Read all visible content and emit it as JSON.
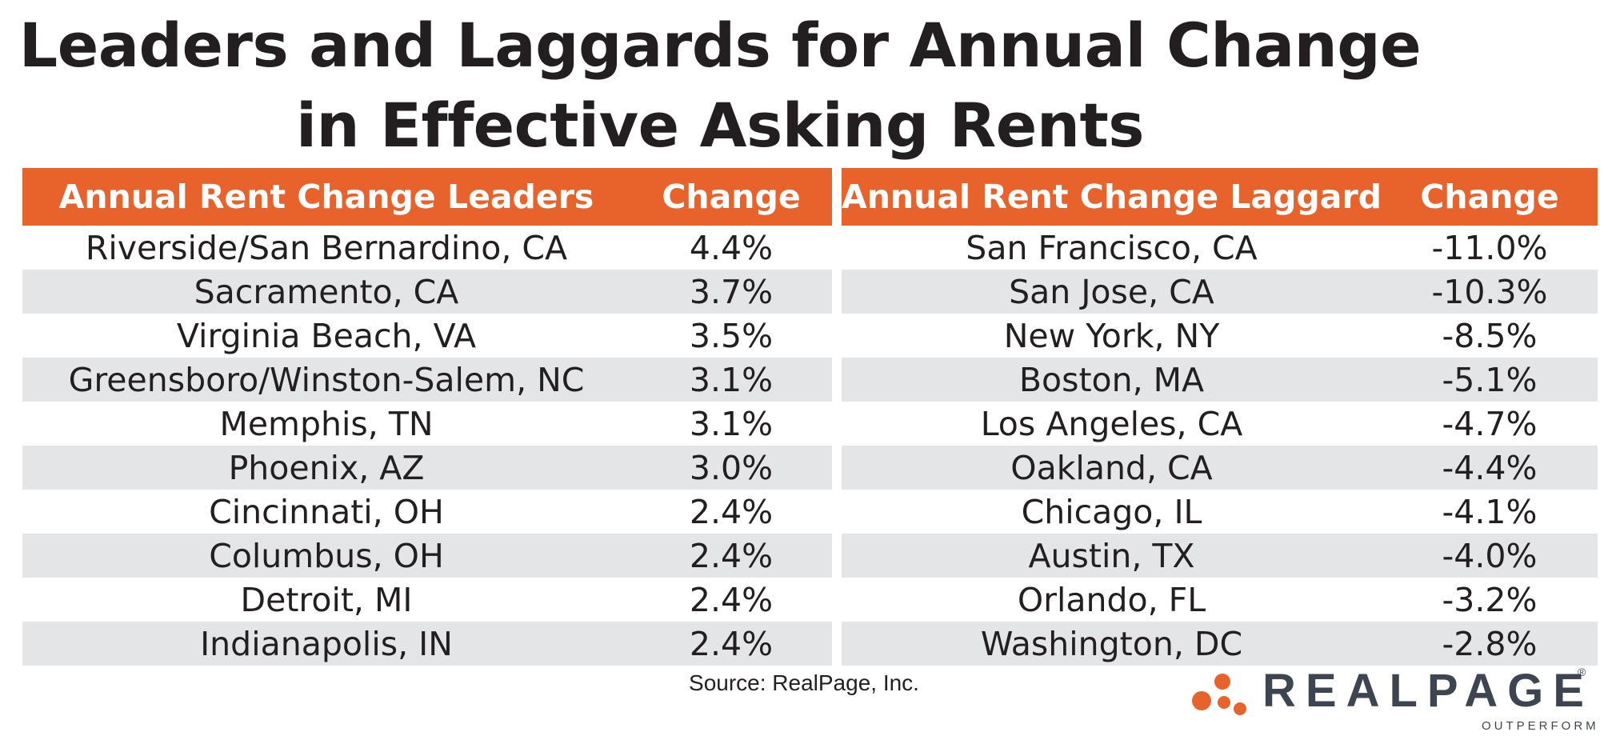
{
  "title_lines": [
    "Leaders and Laggards for Annual Change",
    "in Effective Asking Rents"
  ],
  "chart_data": [
    {
      "type": "table",
      "columns": [
        "Annual Rent Change Leaders",
        "Change"
      ],
      "rows": [
        [
          "Riverside/San Bernardino, CA",
          "4.4%"
        ],
        [
          "Sacramento, CA",
          "3.7%"
        ],
        [
          "Virginia Beach, VA",
          "3.5%"
        ],
        [
          "Greensboro/Winston-Salem, NC",
          "3.1%"
        ],
        [
          "Memphis, TN",
          "3.1%"
        ],
        [
          "Phoenix, AZ",
          "3.0%"
        ],
        [
          "Cincinnati, OH",
          "2.4%"
        ],
        [
          "Columbus, OH",
          "2.4%"
        ],
        [
          "Detroit, MI",
          "2.4%"
        ],
        [
          "Indianapolis, IN",
          "2.4%"
        ]
      ]
    },
    {
      "type": "table",
      "columns": [
        "Annual Rent Change Laggards",
        "Change"
      ],
      "rows": [
        [
          "San Francisco, CA",
          "-11.0%"
        ],
        [
          "San Jose, CA",
          "-10.3%"
        ],
        [
          "New York, NY",
          "-8.5%"
        ],
        [
          "Boston, MA",
          "-5.1%"
        ],
        [
          "Los Angeles, CA",
          "-4.7%"
        ],
        [
          "Oakland, CA",
          "-4.4%"
        ],
        [
          "Chicago, IL",
          "-4.1%"
        ],
        [
          "Austin, TX",
          "-4.0%"
        ],
        [
          "Orlando, FL",
          "-3.2%"
        ],
        [
          "Washington, DC",
          "-2.8%"
        ]
      ]
    }
  ],
  "source": "Source: RealPage, Inc.",
  "logo": {
    "wordmark": "REALPAGE",
    "registered": "®",
    "tagline": "OUTPERFORM",
    "icon": "dots-triangle-icon"
  },
  "colors": {
    "header_bg": "#e8622c",
    "header_text": "#ffffff",
    "row_shade": "#e4e5e7",
    "text": "#231f20",
    "logo_text": "#3d4650",
    "logo_dots": "#e8622c"
  }
}
